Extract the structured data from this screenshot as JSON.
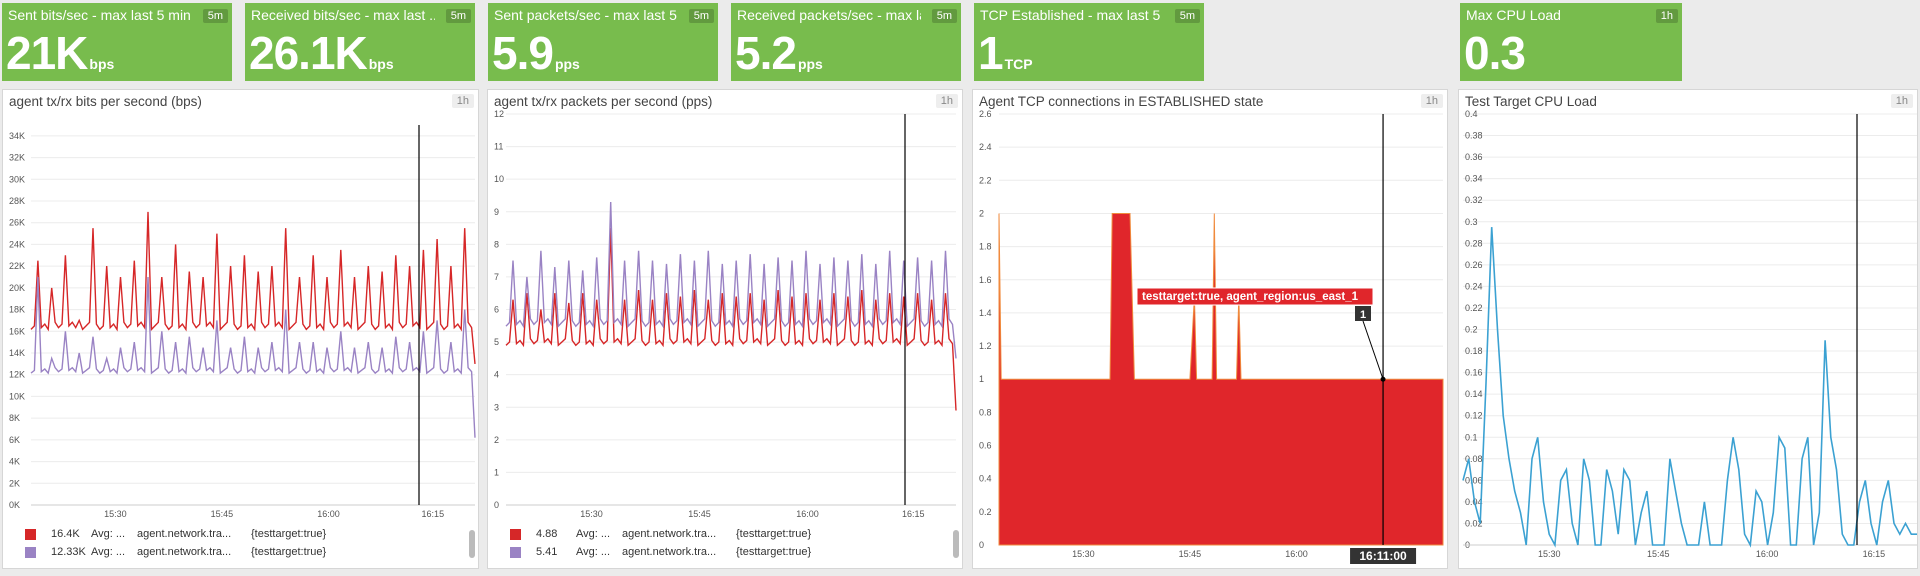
{
  "tiles": [
    {
      "title": "Sent bits/sec - max last 5 min",
      "badge": "5m",
      "value": "21K",
      "unit": "bps"
    },
    {
      "title": "Received bits/sec - max last ...",
      "badge": "5m",
      "value": "26.1K",
      "unit": "bps"
    },
    {
      "title": "Sent packets/sec - max last 5 ...",
      "badge": "5m",
      "value": "5.9",
      "unit": "pps"
    },
    {
      "title": "Received packets/sec - max la...",
      "badge": "5m",
      "value": "5.2",
      "unit": "pps"
    },
    {
      "title": "TCP Established - max last 5 ...",
      "badge": "5m",
      "value": "1",
      "unit": "TCP"
    },
    {
      "title": "Max CPU Load",
      "badge": "1h",
      "value": "0.3",
      "unit": ""
    }
  ],
  "panels": [
    {
      "title": "agent tx/rx bits per second (bps)",
      "badge": "1h",
      "legend": [
        {
          "color": "#d62728",
          "value": "16.4K",
          "avg": "Avg: ...",
          "name": "agent.network.tra...",
          "tag": "{testtarget:true}"
        },
        {
          "color": "#9a83c4",
          "value": "12.33K",
          "avg": "Avg: ...",
          "name": "agent.network.tra...",
          "tag": "{testtarget:true}"
        }
      ]
    },
    {
      "title": "agent tx/rx packets per second (pps)",
      "badge": "1h",
      "legend": [
        {
          "color": "#d62728",
          "value": "4.88",
          "avg": "Avg: ...",
          "name": "agent.network.tra...",
          "tag": "{testtarget:true}"
        },
        {
          "color": "#9a83c4",
          "value": "5.41",
          "avg": "Avg: ...",
          "name": "agent.network.tra...",
          "tag": "{testtarget:true}"
        }
      ]
    },
    {
      "title": "Agent TCP connections in ESTABLISHED state",
      "badge": "1h",
      "tooltip": {
        "series": "testtarget:true, agent_region:us_east_1",
        "value": "1",
        "time": "16:11:00"
      }
    },
    {
      "title": "Test Target CPU Load",
      "badge": "1h"
    }
  ],
  "chart_data": [
    {
      "type": "line",
      "title": "agent tx/rx bits per second (bps)",
      "x_ticks": [
        "15:30",
        "15:45",
        "16:00",
        "16:15"
      ],
      "ylim": [
        0,
        35000
      ],
      "y_ticks": [
        "0K",
        "2K",
        "4K",
        "6K",
        "8K",
        "10K",
        "12K",
        "14K",
        "16K",
        "18K",
        "20K",
        "22K",
        "24K",
        "26K",
        "28K",
        "30K",
        "32K",
        "34K"
      ],
      "series": [
        {
          "baseline": 16500,
          "spikes": [
            22500,
            20000,
            23000,
            17000,
            25500,
            22000,
            21000,
            22500,
            27000,
            21000,
            24000,
            21500,
            21000,
            25000,
            22000,
            23000,
            21500,
            22000,
            25500,
            21000,
            23000,
            21000,
            23500,
            21000,
            22000,
            21500,
            23000,
            22000,
            23500,
            24500,
            22000,
            25500
          ],
          "end": 13000
        },
        {
          "baseline": 12400,
          "spikes": [
            21000,
            13500,
            16000,
            14000,
            15500,
            13500,
            14500,
            15000,
            21000,
            16000,
            15000,
            15500,
            14500,
            17000,
            14500,
            15500,
            14500,
            15000,
            18000,
            15000,
            15000,
            14500,
            16000,
            14500,
            15000,
            14500,
            15500,
            15000,
            16000,
            17000,
            15000,
            18000
          ],
          "end": 6200
        }
      ]
    },
    {
      "type": "line",
      "title": "agent tx/rx packets per second (pps)",
      "x_ticks": [
        "15:30",
        "15:45",
        "16:00",
        "16:15"
      ],
      "ylim": [
        0,
        12
      ],
      "y_ticks": [
        "0",
        "1",
        "2",
        "3",
        "4",
        "5",
        "6",
        "7",
        "8",
        "9",
        "10",
        "11",
        "12"
      ],
      "series": [
        {
          "baseline": 5.0,
          "spikes": [
            6.3,
            6.5,
            6.0,
            6.5,
            6.2,
            6.5,
            6.3,
            8.5,
            6.3,
            6.6,
            6.3,
            6.5,
            6.4,
            6.6,
            6.3,
            6.5,
            6.4,
            6.5,
            6.3,
            6.6,
            6.4,
            6.5,
            6.3,
            6.5,
            6.4,
            6.6,
            6.3,
            6.5,
            6.4,
            6.5,
            6.3,
            6.5
          ],
          "end": 2.9
        },
        {
          "baseline": 5.6,
          "spikes": [
            7.5,
            7.0,
            7.8,
            7.3,
            7.5,
            7.2,
            7.6,
            9.3,
            7.5,
            7.8,
            7.5,
            7.4,
            7.7,
            7.5,
            7.8,
            7.4,
            7.5,
            7.7,
            7.4,
            7.6,
            7.5,
            7.8,
            7.4,
            7.6,
            7.5,
            7.7,
            7.4,
            7.8,
            7.5,
            7.6,
            7.5,
            7.8
          ],
          "end": 4.5
        }
      ]
    },
    {
      "type": "area",
      "title": "Agent TCP connections in ESTABLISHED state",
      "x_ticks": [
        "15:30",
        "15:45",
        "16:00",
        "16:15"
      ],
      "ylim": [
        0,
        2.6
      ],
      "y_ticks": [
        "0",
        "0.2",
        "0.4",
        "0.6",
        "0.8",
        "1",
        "1.2",
        "1.4",
        "1.6",
        "1.8",
        "2",
        "2.2",
        "2.4",
        "2.6"
      ],
      "series": [
        {
          "name": "testtarget:true, agent_region:us_east_1",
          "baseline": 1,
          "events": [
            {
              "t": "15:16",
              "v": 2
            },
            {
              "t": "15:33-15:36",
              "v": 2
            },
            {
              "t": "15:45",
              "v": 1.5
            },
            {
              "t": "15:48",
              "v": 2
            },
            {
              "t": "15:52",
              "v": 1.5
            }
          ]
        }
      ]
    },
    {
      "type": "line",
      "title": "Test Target CPU Load",
      "x_ticks": [
        "15:30",
        "15:45",
        "16:00",
        "16:15"
      ],
      "ylim": [
        0,
        0.4
      ],
      "y_ticks": [
        "0",
        "0.02",
        "0.04",
        "0.06",
        "0.08",
        "0.1",
        "0.12",
        "0.14",
        "0.16",
        "0.18",
        "0.2",
        "0.22",
        "0.24",
        "0.26",
        "0.28",
        "0.3",
        "0.32",
        "0.34",
        "0.36",
        "0.38",
        "0.4"
      ],
      "series": [
        {
          "values": [
            0.06,
            0.08,
            0.04,
            0.02,
            0.15,
            0.295,
            0.2,
            0.12,
            0.08,
            0.05,
            0.03,
            0.0,
            0.08,
            0.1,
            0.04,
            0.01,
            0.0,
            0.06,
            0.07,
            0.02,
            0.0,
            0.08,
            0.06,
            0.0,
            0.0,
            0.07,
            0.05,
            0.01,
            0.07,
            0.06,
            0.0,
            0.03,
            0.05,
            0.0,
            0.0,
            0.0,
            0.08,
            0.05,
            0.02,
            0.0,
            0.0,
            0.0,
            0.04,
            0.0,
            0.0,
            0.0,
            0.06,
            0.1,
            0.07,
            0.01,
            0.0,
            0.05,
            0.04,
            0.0,
            0.03,
            0.1,
            0.09,
            0.0,
            0.0,
            0.08,
            0.1,
            0.0,
            0.03,
            0.19,
            0.1,
            0.07,
            0.01,
            0.0,
            0.0,
            0.04,
            0.06,
            0.02,
            0.0,
            0.04,
            0.06,
            0.02,
            0.01,
            0.02,
            0.01,
            0.01
          ]
        }
      ]
    }
  ]
}
